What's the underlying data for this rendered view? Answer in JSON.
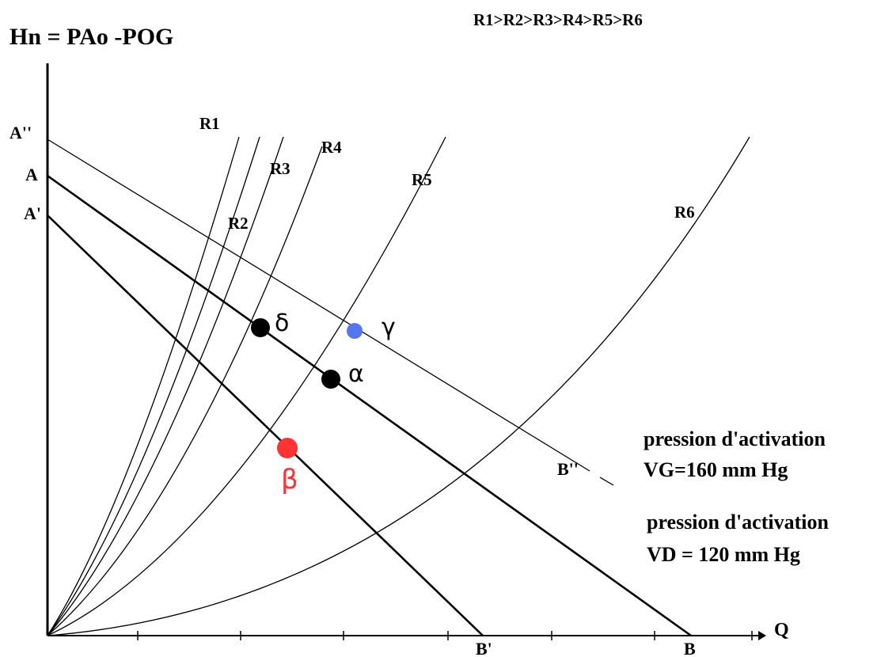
{
  "title": "Hn = PAo -POG",
  "order_note": "R1>R2>R3>R4>R5>R6",
  "y_axis_labels": {
    "a2": "A''",
    "a": "A",
    "a1": "A'"
  },
  "x_axis_label": "Q",
  "x_axis_point_labels": {
    "b1": "B'",
    "b": "B",
    "b2": "B''"
  },
  "resistance_labels": [
    "R1",
    "R2",
    "R3",
    "R4",
    "R5",
    "R6"
  ],
  "points": {
    "alpha": {
      "label": "α",
      "color": "#000000"
    },
    "beta": {
      "label": "β",
      "color": "#ff3333"
    },
    "gamma": {
      "label": "γ",
      "color": "#5577ee"
    },
    "delta": {
      "label": "δ",
      "color": "#000000"
    }
  },
  "annotations": {
    "vg_line1": "pression d'activation",
    "vg_line2": "VG=160 mm Hg",
    "vd_line1": "pression d'activation",
    "vd_line2": "VD = 120 mm Hg"
  }
}
